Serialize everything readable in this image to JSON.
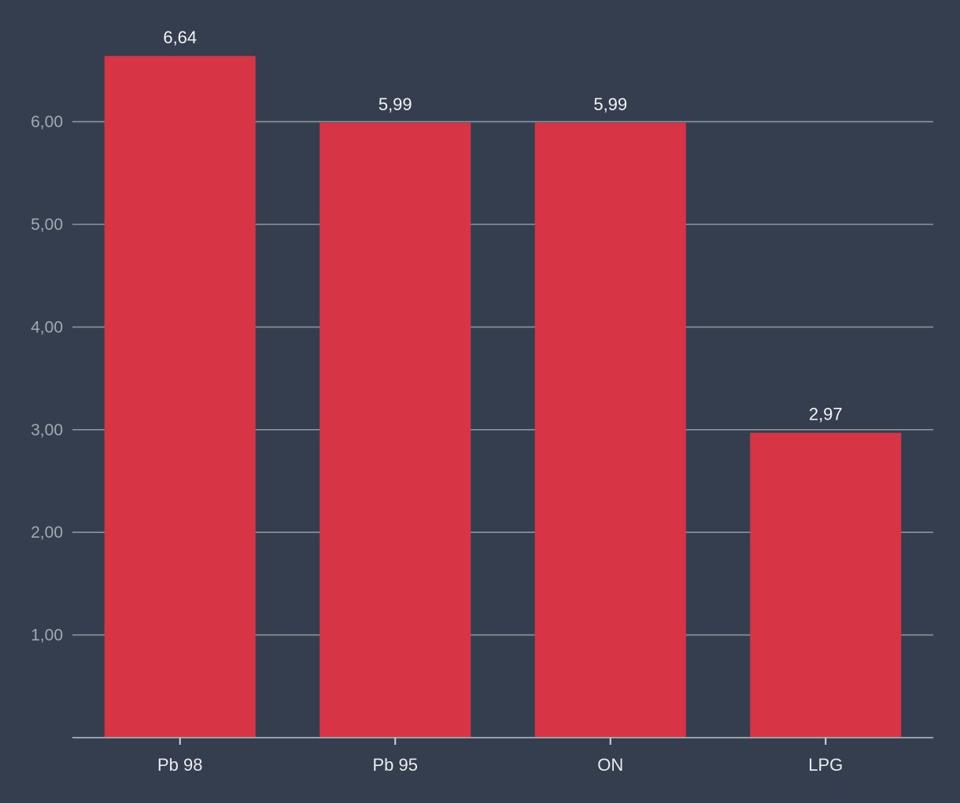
{
  "colors": {
    "background": "#343e4e",
    "bar": "#d73545"
  },
  "chart_data": {
    "type": "bar",
    "categories": [
      "Pb 98",
      "Pb 95",
      "ON",
      "LPG"
    ],
    "values": [
      6.64,
      5.99,
      5.99,
      2.97
    ],
    "data_labels": [
      "6,64",
      "5,99",
      "5,99",
      "2,97"
    ],
    "y_ticks": [
      {
        "value": 1,
        "label": "1,00"
      },
      {
        "value": 2,
        "label": "2,00"
      },
      {
        "value": 3,
        "label": "3,00"
      },
      {
        "value": 4,
        "label": "4,00"
      },
      {
        "value": 5,
        "label": "5,00"
      },
      {
        "value": 6,
        "label": "6,00"
      }
    ],
    "ylim": [
      0,
      6.64
    ],
    "grid": true,
    "legend": "none"
  }
}
